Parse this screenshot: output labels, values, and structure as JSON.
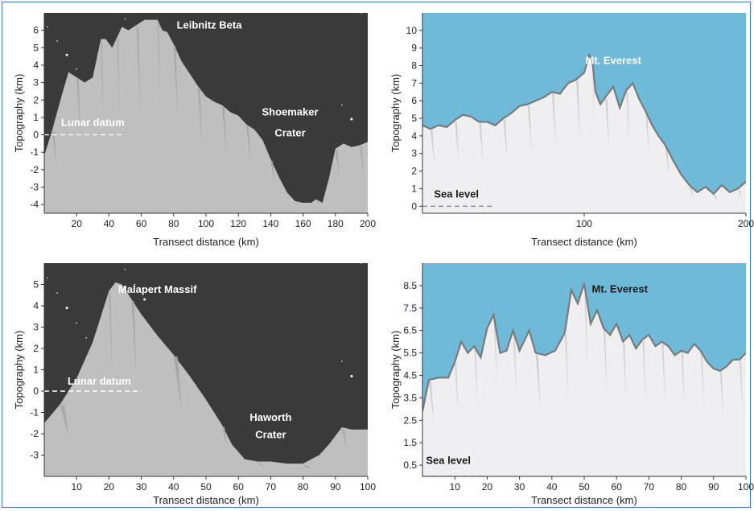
{
  "chart_data": [
    {
      "type": "area",
      "panel": "top-left",
      "xlabel": "Transect distance (km)",
      "ylabel": "Topography (km)",
      "xlim": [
        0,
        200
      ],
      "ylim": [
        -4.5,
        7
      ],
      "xticks": [
        20,
        40,
        60,
        80,
        100,
        120,
        140,
        160,
        180,
        200
      ],
      "yticks": [
        -4,
        -3,
        -2,
        -1,
        0,
        1,
        2,
        3,
        4,
        5,
        6
      ],
      "colors": {
        "sky": "#3a3a3a",
        "terrain": "#bfbfbf",
        "shade": "#a3a3a3",
        "text": "#ffffff"
      },
      "annotations": [
        {
          "text": "Leibnitz Beta",
          "x": 102,
          "y": 6.1
        },
        {
          "text": "Shoemaker",
          "x": 152,
          "y": 1.1
        },
        {
          "text": "Crater",
          "x": 152,
          "y": -0.1
        },
        {
          "text": "Lunar datum",
          "x": 30,
          "y": 0.5
        }
      ],
      "datum": {
        "label": "Lunar datum",
        "y": 0,
        "x": [
          0,
          50
        ]
      },
      "x": [
        0,
        5,
        10,
        15,
        20,
        25,
        30,
        35,
        38,
        42,
        45,
        48,
        52,
        57,
        62,
        65,
        70,
        73,
        76,
        80,
        85,
        90,
        95,
        100,
        105,
        110,
        115,
        120,
        125,
        130,
        135,
        140,
        145,
        150,
        155,
        160,
        165,
        168,
        172,
        176,
        180,
        185,
        190,
        195,
        200
      ],
      "y": [
        -1.2,
        0.3,
        2.0,
        3.6,
        3.3,
        3.0,
        3.3,
        5.5,
        5.5,
        5.0,
        5.6,
        6.2,
        6.0,
        6.3,
        6.6,
        6.6,
        6.6,
        6.0,
        5.9,
        5.2,
        4.2,
        3.5,
        2.8,
        2.2,
        1.9,
        1.7,
        1.3,
        1.1,
        0.6,
        0.3,
        -0.3,
        -1.4,
        -2.4,
        -3.3,
        -3.8,
        -3.9,
        -3.9,
        -3.7,
        -3.9,
        -2.5,
        -0.8,
        -0.5,
        -0.7,
        -0.6,
        -0.4
      ]
    },
    {
      "type": "area",
      "panel": "top-right",
      "xlabel": "Transect distance (km)",
      "ylabel": "Topography (km)",
      "xlim": [
        0,
        200
      ],
      "ylim": [
        -0.4,
        11
      ],
      "xticks": [
        100,
        200
      ],
      "xtick_labels": [
        "100",
        "200"
      ],
      "yticks": [
        0,
        1,
        2,
        3,
        4,
        5,
        6,
        7,
        8,
        9,
        10
      ],
      "colors": {
        "sky": "#6fbad8",
        "terrain": "#efeff1",
        "shade": "#c9c9cb",
        "line": "#7a7a7a",
        "text": "#ffffff"
      },
      "annotations": [
        {
          "text": "Mt. Everest",
          "x": 118,
          "y": 8.1
        },
        {
          "text": "Sea level",
          "x": 21,
          "y": 0.5
        }
      ],
      "sea_level": {
        "label": "Sea level",
        "y": 0,
        "x": [
          0,
          44
        ]
      },
      "x": [
        0,
        5,
        10,
        15,
        20,
        25,
        30,
        35,
        40,
        45,
        50,
        55,
        60,
        65,
        70,
        75,
        80,
        85,
        90,
        95,
        100,
        103,
        105,
        107,
        110,
        113,
        118,
        122,
        126,
        130,
        134,
        138,
        142,
        146,
        150,
        155,
        160,
        165,
        170,
        175,
        180,
        185,
        190,
        195,
        200
      ],
      "y": [
        4.6,
        4.4,
        4.6,
        4.5,
        4.9,
        5.2,
        5.1,
        4.8,
        4.8,
        4.6,
        5.0,
        5.3,
        5.7,
        5.8,
        6.0,
        6.2,
        6.5,
        6.4,
        7.0,
        7.2,
        7.6,
        8.6,
        8.3,
        6.5,
        5.8,
        6.2,
        6.8,
        5.6,
        6.6,
        7.0,
        6.1,
        5.4,
        4.6,
        4.0,
        3.5,
        2.6,
        1.8,
        1.2,
        0.8,
        1.1,
        0.7,
        1.2,
        0.8,
        1.0,
        1.4
      ]
    },
    {
      "type": "area",
      "panel": "bottom-left",
      "xlabel": "Transect distance (km)",
      "ylabel": "Topography (km)",
      "xlim": [
        0,
        100
      ],
      "ylim": [
        -4,
        6
      ],
      "xticks": [
        10,
        20,
        30,
        40,
        50,
        60,
        70,
        80,
        90,
        100
      ],
      "yticks": [
        -3,
        -2,
        -1,
        0,
        1,
        2,
        3,
        4,
        5
      ],
      "colors": {
        "sky": "#3a3a3a",
        "terrain": "#bfbfbf",
        "shade": "#a3a3a3",
        "text": "#ffffff"
      },
      "annotations": [
        {
          "text": "Malapert Massif",
          "x": 35,
          "y": 4.6
        },
        {
          "text": "Haworth",
          "x": 70,
          "y": -1.4
        },
        {
          "text": "Crater",
          "x": 70,
          "y": -2.2
        },
        {
          "text": "Lunar datum",
          "x": 17,
          "y": 0.3
        }
      ],
      "datum": {
        "label": "Lunar datum",
        "y": 0,
        "x": [
          0,
          30
        ]
      },
      "x": [
        0,
        5,
        10,
        15,
        20,
        22,
        24,
        27,
        30,
        35,
        40,
        45,
        50,
        55,
        58,
        62,
        66,
        70,
        75,
        80,
        85,
        88,
        92,
        95,
        100
      ],
      "y": [
        -1.5,
        -0.6,
        0.6,
        2.3,
        4.7,
        5.1,
        5.0,
        4.3,
        3.6,
        2.6,
        1.7,
        0.7,
        -0.4,
        -1.6,
        -2.5,
        -3.2,
        -3.3,
        -3.3,
        -3.4,
        -3.4,
        -3.0,
        -2.5,
        -1.7,
        -1.8,
        -1.8
      ]
    },
    {
      "type": "area",
      "panel": "bottom-right",
      "xlabel": "Transect distance (km)",
      "ylabel": "Topography (km)",
      "xlim": [
        0,
        100
      ],
      "ylim": [
        0,
        9.5
      ],
      "xticks": [
        10,
        20,
        30,
        40,
        50,
        60,
        70,
        80,
        90,
        100
      ],
      "yticks": [
        0.5,
        1.5,
        2.5,
        3.5,
        4.5,
        5.5,
        6.5,
        7.5,
        8.5
      ],
      "colors": {
        "sky": "#6fbad8",
        "terrain": "#efeff1",
        "shade": "#c9c9cb",
        "line": "#7a7a7a",
        "text": "#1a1a1a"
      },
      "annotations": [
        {
          "text": "Mt. Everest",
          "x": 61,
          "y": 8.2
        },
        {
          "text": "Sea level",
          "x": 8,
          "y": 0.55
        }
      ],
      "sea_level": {
        "label": "Sea level",
        "y": 0,
        "x": [
          0,
          19
        ]
      },
      "x": [
        0,
        2,
        5,
        8,
        10,
        12,
        14,
        16,
        18,
        20,
        22,
        24,
        26,
        28,
        30,
        33,
        35,
        38,
        41,
        44,
        46,
        48,
        50,
        52,
        54,
        56,
        58,
        60,
        62,
        64,
        66,
        68,
        70,
        72,
        74,
        76,
        78,
        80,
        82,
        84,
        86,
        88,
        90,
        92,
        94,
        96,
        98,
        100
      ],
      "y": [
        2.9,
        4.3,
        4.4,
        4.4,
        5.1,
        6.0,
        5.5,
        5.8,
        5.3,
        6.6,
        7.2,
        5.5,
        5.6,
        6.5,
        5.6,
        6.5,
        5.5,
        5.4,
        5.6,
        6.4,
        8.3,
        7.7,
        8.6,
        6.8,
        7.4,
        6.6,
        6.3,
        6.8,
        6.0,
        6.3,
        5.7,
        6.1,
        6.3,
        5.8,
        6.0,
        5.8,
        5.4,
        5.6,
        5.5,
        5.9,
        5.6,
        5.1,
        4.8,
        4.7,
        4.9,
        5.2,
        5.2,
        5.5
      ]
    }
  ]
}
